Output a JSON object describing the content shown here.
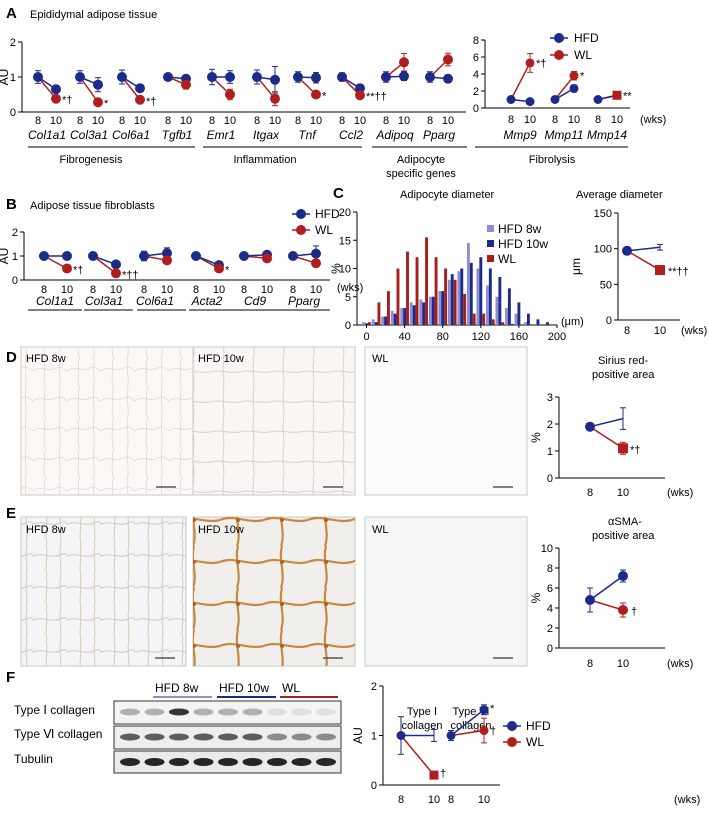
{
  "colors": {
    "hfd": "#1c2a8a",
    "wl": "#b01e1e",
    "hfd8": "#8a8fd0",
    "hfd10": "#1c2a8a",
    "wlbar": "#a81c1c",
    "err": "#2a2a2a"
  },
  "units": {
    "wks": "(wks)",
    "um": "(μm)",
    "au": "AU",
    "pct": "%",
    "micron": "μm"
  },
  "legend": {
    "hfd": "HFD",
    "wl": "WL",
    "hfd8": "HFD 8w",
    "hfd10": "HFD 10w"
  },
  "panels": {
    "A": {
      "label": "A",
      "title": "Epididymal adipose tissue",
      "groups": [
        "Fibrogenesis",
        "Inflammation",
        "Adipocyte",
        "specific genes",
        "Fibrolysis"
      ]
    },
    "B": {
      "label": "B",
      "title": "Adipose tissue fibroblasts"
    },
    "C": {
      "label": "C",
      "hist_title": "Adipocyte diameter",
      "avg_title": "Average diameter"
    },
    "D": {
      "label": "D",
      "images": [
        "HFD 8w",
        "HFD 10w",
        "WL"
      ],
      "title1": "Sirius red-",
      "title2": "positive area"
    },
    "E": {
      "label": "E",
      "images": [
        "HFD 8w",
        "HFD 10w",
        "WL"
      ],
      "title1": "αSMA-",
      "title2": "positive area"
    },
    "F": {
      "label": "F",
      "blot_groups": [
        "HFD 8w",
        "HFD 10w",
        "WL"
      ],
      "blot_rows": [
        "Type Ⅰ collagen",
        "Type Ⅵ collagen",
        "Tubulin"
      ],
      "type1_1": "Type Ⅰ",
      "type1_2": "collagen",
      "type6_1": "Type Ⅵ",
      "type6_2": "collagen"
    }
  },
  "chart_data": [
    {
      "id": "A",
      "type": "line",
      "title": "Epididymal adipose tissue",
      "ylabel": "AU",
      "ylim": [
        0,
        2
      ],
      "yticks": [
        0,
        1,
        2
      ],
      "xticks": [
        "8",
        "10"
      ],
      "genes": [
        {
          "name": "Col1a1",
          "hfd": [
            1.0,
            0.65
          ],
          "wl": [
            1.0,
            0.38
          ],
          "hfd_err": [
            0.18,
            0.07
          ],
          "wl_err": [
            0.18,
            0.05
          ],
          "sig": "*†"
        },
        {
          "name": "Col3a1",
          "hfd": [
            1.0,
            0.78
          ],
          "wl": [
            1.0,
            0.28
          ],
          "hfd_err": [
            0.18,
            0.2
          ],
          "wl_err": [
            0.18,
            0.04
          ],
          "sig": "*"
        },
        {
          "name": "Col6a1",
          "hfd": [
            1.0,
            0.68
          ],
          "wl": [
            1.0,
            0.35
          ],
          "hfd_err": [
            0.2,
            0.08
          ],
          "wl_err": [
            0.2,
            0.05
          ],
          "sig": "*†"
        },
        {
          "name": "Tgfb1",
          "hfd": [
            1.0,
            0.95
          ],
          "wl": [
            1.0,
            0.78
          ],
          "hfd_err": [
            0.08,
            0.08
          ],
          "wl_err": [
            0.08,
            0.12
          ],
          "sig": ""
        },
        {
          "name": "Emr1",
          "hfd": [
            1.0,
            1.0
          ],
          "wl": [
            1.0,
            0.5
          ],
          "hfd_err": [
            0.22,
            0.18
          ],
          "wl_err": [
            0.22,
            0.15
          ],
          "sig": ""
        },
        {
          "name": "Itgax",
          "hfd": [
            1.0,
            0.92
          ],
          "wl": [
            1.0,
            0.38
          ],
          "hfd_err": [
            0.2,
            0.38
          ],
          "wl_err": [
            0.2,
            0.2
          ],
          "sig": ""
        },
        {
          "name": "Tnf",
          "hfd": [
            1.0,
            0.98
          ],
          "wl": [
            1.0,
            0.5
          ],
          "hfd_err": [
            0.15,
            0.15
          ],
          "wl_err": [
            0.15,
            0.08
          ],
          "sig": "*"
        },
        {
          "name": "Ccl2",
          "hfd": [
            1.0,
            0.68
          ],
          "wl": [
            1.0,
            0.48
          ],
          "hfd_err": [
            0.12,
            0.05
          ],
          "wl_err": [
            0.12,
            0.04
          ],
          "sig": "**††"
        },
        {
          "name": "Adipoq",
          "hfd": [
            1.0,
            1.02
          ],
          "wl": [
            1.0,
            1.42
          ],
          "hfd_err": [
            0.15,
            0.12
          ],
          "wl_err": [
            0.15,
            0.25
          ],
          "sig": ""
        },
        {
          "name": "Pparg",
          "hfd": [
            1.0,
            0.95
          ],
          "wl": [
            1.0,
            1.5
          ],
          "hfd_err": [
            0.15,
            0.1
          ],
          "wl_err": [
            0.15,
            0.18
          ],
          "sig": ""
        }
      ]
    },
    {
      "id": "A-fibrolysis",
      "type": "line",
      "ylim": [
        0,
        8
      ],
      "yticks": [
        0,
        2,
        4,
        6,
        8
      ],
      "xticks": [
        "8",
        "10"
      ],
      "genes": [
        {
          "name": "Mmp9",
          "hfd": [
            1.0,
            0.75
          ],
          "wl": [
            1.0,
            5.3
          ],
          "hfd_err": [
            0.1,
            0.08
          ],
          "wl_err": [
            0.1,
            1.1
          ],
          "sig": "*†"
        },
        {
          "name": "Mmp11",
          "hfd": [
            1.0,
            2.3
          ],
          "wl": [
            1.0,
            3.8
          ],
          "hfd_err": [
            0.1,
            0.4
          ],
          "wl_err": [
            0.1,
            0.5
          ],
          "sig": "*"
        },
        {
          "name": "Mmp14",
          "hfd": [
            1.0,
            1.5
          ],
          "wl": [
            1.0,
            1.5
          ],
          "hfd_err": [
            0.08,
            0.12
          ],
          "wl_err": [
            0.08,
            0.15
          ],
          "sig": "**"
        }
      ]
    },
    {
      "id": "B",
      "type": "line",
      "title": "Adipose tissue fibroblasts",
      "ylabel": "AU",
      "ylim": [
        0,
        2
      ],
      "yticks": [
        0,
        1,
        2
      ],
      "xticks": [
        "8",
        "10"
      ],
      "genes": [
        {
          "name": "Col1a1",
          "hfd": [
            1.0,
            1.0
          ],
          "wl": [
            1.0,
            0.48
          ],
          "hfd_err": [
            0.12,
            0.15
          ],
          "wl_err": [
            0.12,
            0.05
          ],
          "sig": "*†"
        },
        {
          "name": "Col3a1",
          "hfd": [
            1.0,
            0.65
          ],
          "wl": [
            1.0,
            0.28
          ],
          "hfd_err": [
            0.15,
            0.05
          ],
          "wl_err": [
            0.15,
            0.03
          ],
          "sig": "*††"
        },
        {
          "name": "Col6a1",
          "hfd": [
            1.0,
            1.12
          ],
          "wl": [
            1.0,
            0.82
          ],
          "hfd_err": [
            0.2,
            0.22
          ],
          "wl_err": [
            0.2,
            0.1
          ],
          "sig": ""
        },
        {
          "name": "Acta2",
          "hfd": [
            1.0,
            0.62
          ],
          "wl": [
            1.0,
            0.48
          ],
          "hfd_err": [
            0.12,
            0.05
          ],
          "wl_err": [
            0.12,
            0.08
          ],
          "sig": "*"
        },
        {
          "name": "Cd9",
          "hfd": [
            1.0,
            1.05
          ],
          "wl": [
            1.0,
            0.9
          ],
          "hfd_err": [
            0.08,
            0.1
          ],
          "wl_err": [
            0.08,
            0.08
          ],
          "sig": ""
        },
        {
          "name": "Pparg",
          "hfd": [
            1.0,
            1.1
          ],
          "wl": [
            1.0,
            0.7
          ],
          "hfd_err": [
            0.1,
            0.32
          ],
          "wl_err": [
            0.1,
            0.15
          ],
          "sig": ""
        }
      ]
    },
    {
      "id": "C-hist",
      "type": "bar",
      "title": "Adipocyte diameter",
      "ylabel": "%",
      "xlabel": "(μm)",
      "ylim": [
        0,
        20
      ],
      "yticks": [
        0,
        5,
        10,
        15,
        20
      ],
      "xlim": [
        -10,
        200
      ],
      "xticks": [
        0,
        40,
        80,
        120,
        160,
        200
      ],
      "bins": [
        0,
        10,
        20,
        30,
        40,
        50,
        60,
        70,
        80,
        90,
        100,
        110,
        120,
        130,
        140,
        150,
        160,
        170,
        180,
        190
      ],
      "series": [
        {
          "name": "HFD 8w",
          "values": [
            0.5,
            1,
            1.5,
            2.5,
            3,
            4,
            4.5,
            5,
            6,
            8,
            9.5,
            14.5,
            10,
            7,
            5,
            3,
            2,
            0.5,
            0.2,
            0
          ]
        },
        {
          "name": "HFD 10w",
          "values": [
            0.3,
            0.5,
            1.5,
            2,
            3,
            3.5,
            4,
            5,
            6,
            9,
            10,
            11,
            12,
            10,
            8.5,
            6.5,
            4,
            2,
            1,
            0.5
          ]
        },
        {
          "name": "WL",
          "values": [
            0.5,
            4,
            6,
            10,
            13,
            12,
            15.5,
            12,
            10,
            8,
            5.5,
            2,
            2,
            1,
            0.5,
            0.2,
            0,
            0,
            0,
            0
          ]
        }
      ]
    },
    {
      "id": "C-avg",
      "type": "line",
      "title": "Average diameter",
      "ylabel": "μm",
      "ylim": [
        0,
        150
      ],
      "yticks": [
        0,
        50,
        100,
        150
      ],
      "xticks": [
        "8",
        "10"
      ],
      "hfd": [
        97,
        102
      ],
      "wl": [
        97,
        70
      ],
      "hfd_err": [
        3,
        4
      ],
      "wl_err": [
        3,
        6
      ],
      "sig": "**††"
    },
    {
      "id": "D",
      "type": "line",
      "title": "Sirius red-positive area",
      "ylabel": "%",
      "ylim": [
        0,
        3
      ],
      "yticks": [
        0,
        1,
        2,
        3
      ],
      "xticks": [
        "8",
        "10"
      ],
      "hfd": [
        1.9,
        2.2
      ],
      "wl": [
        1.9,
        1.1
      ],
      "hfd_err": [
        0.05,
        0.4
      ],
      "wl_err": [
        0.05,
        0.22
      ],
      "sig": "*†"
    },
    {
      "id": "E",
      "type": "line",
      "title": "αSMA-positive area",
      "ylabel": "%",
      "ylim": [
        0,
        10
      ],
      "yticks": [
        0,
        2,
        4,
        6,
        8,
        10
      ],
      "xticks": [
        "8",
        "10"
      ],
      "hfd": [
        4.8,
        7.2
      ],
      "wl": [
        4.8,
        3.8
      ],
      "hfd_err": [
        1.2,
        0.6
      ],
      "wl_err": [
        1.2,
        0.7
      ],
      "sig": "†"
    },
    {
      "id": "F",
      "type": "line",
      "ylabel": "AU",
      "ylim": [
        0,
        2
      ],
      "yticks": [
        0,
        1,
        2
      ],
      "xticks": [
        "8",
        "10"
      ],
      "genes": [
        {
          "name": "Type I collagen",
          "hfd": [
            1.0,
            1.0
          ],
          "wl": [
            1.0,
            0.2
          ],
          "hfd_err": [
            0.38,
            0.12
          ],
          "wl_err": [
            0.38,
            0.03
          ],
          "sig": "†"
        },
        {
          "name": "Type VI collagen",
          "hfd": [
            1.0,
            1.52
          ],
          "wl": [
            1.0,
            1.1
          ],
          "hfd_err": [
            0.1,
            0.1
          ],
          "wl_err": [
            0.1,
            0.25
          ],
          "sig": "*|†"
        }
      ]
    }
  ]
}
